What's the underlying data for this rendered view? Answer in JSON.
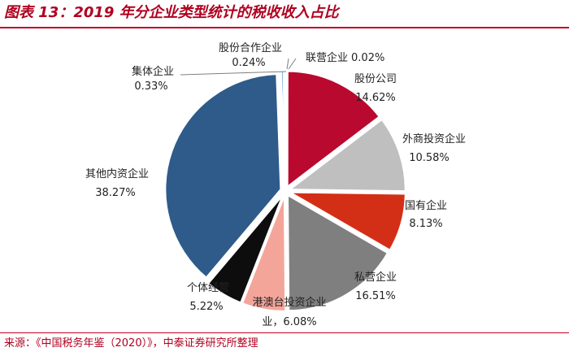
{
  "header": {
    "title": "图表 13：2019 年分企业类型统计的税收收入占比"
  },
  "footer": {
    "source": "来源：《中国税务年鉴（2020）》，中泰证券研究所整理"
  },
  "chart_data": {
    "type": "pie",
    "title": "2019 年分企业类型统计的税收收入占比",
    "unit": "%",
    "start": "12 o'clock",
    "direction": "clockwise",
    "exploded": true,
    "slices": [
      {
        "name": "联营企业",
        "value": 0.02,
        "label": "0.02%",
        "color": "#b9092f"
      },
      {
        "name": "股份公司",
        "value": 14.62,
        "label": "14.62%",
        "color": "#b9092f"
      },
      {
        "name": "外商投资企业",
        "value": 10.58,
        "label": "10.58%",
        "color": "#bfbfbf"
      },
      {
        "name": "国有企业",
        "value": 8.13,
        "label": "8.13%",
        "color": "#d32f17"
      },
      {
        "name": "私营企业",
        "value": 16.51,
        "label": "16.51%",
        "color": "#7f7f7f"
      },
      {
        "name": "港澳台投资企业",
        "value": 6.08,
        "label": "6.08%",
        "color": "#f4a59a"
      },
      {
        "name": "个体经营",
        "value": 5.22,
        "label": "5.22%",
        "color": "#0d0d0d"
      },
      {
        "name": "其他内资企业",
        "value": 38.27,
        "label": "38.27%",
        "color": "#2e5b8a"
      },
      {
        "name": "集体企业",
        "value": 0.33,
        "label": "0.33%",
        "color": "#5b9bd5"
      },
      {
        "name": "股份合作企业",
        "value": 0.24,
        "label": "0.24%",
        "color": "#a5a5a5"
      }
    ]
  }
}
